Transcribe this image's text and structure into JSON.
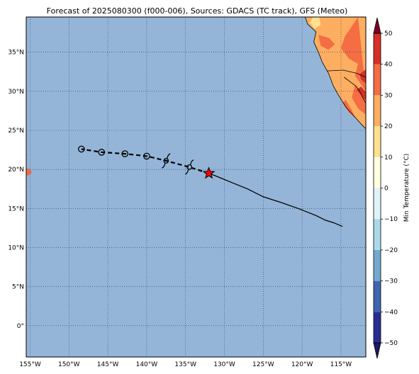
{
  "title": "Forecast of 2025080300 (f000-006), Sources: GDACS (TC track), GFS (Meteo)",
  "map": {
    "lon_range": [
      -155.5,
      -111.8
    ],
    "lat_range": [
      -4.0,
      39.5
    ],
    "ocean_color": "#94b5d8",
    "gridlines": "dotted",
    "lon_ticks": [
      {
        "value": -155,
        "label": "155°W"
      },
      {
        "value": -150,
        "label": "150°W"
      },
      {
        "value": -145,
        "label": "145°W"
      },
      {
        "value": -140,
        "label": "140°W"
      },
      {
        "value": -135,
        "label": "135°W"
      },
      {
        "value": -130,
        "label": "130°W"
      },
      {
        "value": -125,
        "label": "125°W"
      },
      {
        "value": -120,
        "label": "120°W"
      },
      {
        "value": -115,
        "label": "115°W"
      }
    ],
    "lat_ticks": [
      {
        "value": 35,
        "label": "35°N"
      },
      {
        "value": 30,
        "label": "30°N"
      },
      {
        "value": 25,
        "label": "25°N"
      },
      {
        "value": 20,
        "label": "20°N"
      },
      {
        "value": 15,
        "label": "15°N"
      },
      {
        "value": 10,
        "label": "10°N"
      },
      {
        "value": 5,
        "label": "5°N"
      },
      {
        "value": 0,
        "label": "0°"
      }
    ]
  },
  "chart_data": {
    "type": "map",
    "past_track": [
      {
        "lon": -114.8,
        "lat": 12.7
      },
      {
        "lon": -116.0,
        "lat": 13.2
      },
      {
        "lon": -117.0,
        "lat": 13.5
      },
      {
        "lon": -118.2,
        "lat": 14.1
      },
      {
        "lon": -120.5,
        "lat": 15.0
      },
      {
        "lon": -122.8,
        "lat": 15.8
      },
      {
        "lon": -125.0,
        "lat": 16.5
      },
      {
        "lon": -127.0,
        "lat": 17.5
      },
      {
        "lon": -129.5,
        "lat": 18.5
      },
      {
        "lon": -131.2,
        "lat": 19.2
      },
      {
        "lon": -132.0,
        "lat": 19.5
      }
    ],
    "current_position": {
      "lon": -132.0,
      "lat": 19.5
    },
    "forecast_track": [
      {
        "lon": -132.0,
        "lat": 19.5
      },
      {
        "lon": -134.5,
        "lat": 20.3
      },
      {
        "lon": -137.5,
        "lat": 21.1
      },
      {
        "lon": -140.0,
        "lat": 21.7
      },
      {
        "lon": -142.8,
        "lat": 22.0
      },
      {
        "lon": -145.8,
        "lat": 22.2
      },
      {
        "lon": -148.4,
        "lat": 22.6
      }
    ],
    "forecast_markers": [
      {
        "lon": -134.5,
        "lat": 20.3,
        "symbol": "storm"
      },
      {
        "lon": -137.5,
        "lat": 21.1,
        "symbol": "storm"
      },
      {
        "lon": -140.0,
        "lat": 21.7,
        "symbol": "circle"
      },
      {
        "lon": -142.8,
        "lat": 22.0,
        "symbol": "circle"
      },
      {
        "lon": -145.8,
        "lat": 22.2,
        "symbol": "circle"
      },
      {
        "lon": -148.4,
        "lat": 22.6,
        "symbol": "circle"
      }
    ],
    "land_patches": [
      {
        "name": "north-america",
        "bands": [
          {
            "color": "#fdae61",
            "poly": [
              [
                -111.8,
                39.5
              ],
              [
                -119.6,
                39.5
              ],
              [
                -119.3,
                38.6
              ],
              [
                -118.2,
                37.6
              ],
              [
                -118.5,
                36.3
              ],
              [
                -117.9,
                35.0
              ],
              [
                -117.4,
                33.7
              ],
              [
                -116.6,
                32.3
              ],
              [
                -116.0,
                30.7
              ],
              [
                -115.2,
                29.3
              ],
              [
                -114.3,
                27.9
              ],
              [
                -113.3,
                26.8
              ],
              [
                -112.4,
                25.8
              ],
              [
                -111.8,
                25.2
              ]
            ]
          },
          {
            "color": "#f46d43",
            "poly": [
              [
                -112.8,
                39.5
              ],
              [
                -114.5,
                37.0
              ],
              [
                -115.0,
                35.5
              ],
              [
                -114.0,
                34.2
              ],
              [
                -112.8,
                33.5
              ],
              [
                -113.2,
                32.0
              ],
              [
                -112.5,
                31.0
              ],
              [
                -111.8,
                30.0
              ]
            ]
          },
          {
            "color": "#f46d43",
            "poly": [
              [
                -117.9,
                37.2
              ],
              [
                -116.5,
                36.8
              ],
              [
                -115.8,
                36.0
              ],
              [
                -116.6,
                35.3
              ],
              [
                -117.6,
                35.8
              ]
            ]
          },
          {
            "color": "#f46d43",
            "poly": [
              [
                -113.2,
                30.8
              ],
              [
                -112.2,
                29.6
              ],
              [
                -111.8,
                28.5
              ],
              [
                -111.8,
                27.0
              ],
              [
                -112.8,
                27.8
              ],
              [
                -113.6,
                29.2
              ]
            ]
          },
          {
            "color": "#f46d43",
            "poly": [
              [
                -114.8,
                28.5
              ],
              [
                -114.0,
                27.3
              ],
              [
                -113.2,
                26.6
              ],
              [
                -113.6,
                27.6
              ],
              [
                -114.4,
                28.9
              ]
            ]
          },
          {
            "color": "#d73027",
            "poly": [
              [
                -112.6,
                32.2
              ],
              [
                -111.8,
                32.8
              ],
              [
                -111.8,
                31.0
              ],
              [
                -112.4,
                31.5
              ]
            ]
          },
          {
            "color": "#d73027",
            "poly": [
              [
                -113.0,
                30.2
              ],
              [
                -112.3,
                29.4
              ],
              [
                -111.8,
                28.8
              ],
              [
                -111.8,
                29.9
              ],
              [
                -112.4,
                30.6
              ]
            ]
          },
          {
            "color": "#fee090",
            "poly": [
              [
                -118.6,
                39.5
              ],
              [
                -119.0,
                38.8
              ],
              [
                -118.4,
                38.0
              ],
              [
                -117.6,
                38.5
              ],
              [
                -117.8,
                39.5
              ]
            ]
          }
        ],
        "coast": [
          [
            -119.6,
            39.5
          ],
          [
            -119.3,
            38.6
          ],
          [
            -118.2,
            37.6
          ],
          [
            -118.5,
            36.3
          ],
          [
            -117.9,
            35.0
          ],
          [
            -117.4,
            33.7
          ],
          [
            -116.6,
            32.3
          ],
          [
            -116.0,
            30.7
          ],
          [
            -115.2,
            29.3
          ],
          [
            -114.3,
            27.9
          ],
          [
            -113.3,
            26.8
          ],
          [
            -112.4,
            25.8
          ],
          [
            -111.8,
            25.2
          ]
        ],
        "border": [
          [
            -116.8,
            32.6
          ],
          [
            -114.7,
            32.7
          ],
          [
            -113.0,
            32.3
          ],
          [
            -111.8,
            31.8
          ]
        ],
        "gulf_coast": [
          [
            -114.6,
            31.8
          ],
          [
            -113.8,
            31.2
          ],
          [
            -113.0,
            30.6
          ],
          [
            -112.6,
            30.0
          ],
          [
            -112.1,
            29.0
          ],
          [
            -111.8,
            28.5
          ]
        ]
      },
      {
        "name": "hawaii",
        "bands": [
          {
            "color": "#f46d43",
            "poly": [
              [
                -155.5,
                20.2
              ],
              [
                -155.0,
                20.0
              ],
              [
                -154.8,
                19.6
              ],
              [
                -155.2,
                19.2
              ],
              [
                -155.5,
                19.3
              ]
            ]
          }
        ]
      }
    ]
  },
  "colorbar": {
    "label": "Min Temperature (°C)",
    "min": -50,
    "max": 50,
    "extend": "both",
    "levels": [
      -50,
      -40,
      -30,
      -20,
      -10,
      0,
      10,
      20,
      30,
      40,
      50
    ],
    "colors": [
      "#2b2e8f",
      "#3f66ae",
      "#74a9cf",
      "#abd9e9",
      "#e0f3f8",
      "#ffffe1",
      "#fee090",
      "#fdae61",
      "#f46d43",
      "#d73027",
      "#a50026"
    ],
    "under_color": "#1a1a66",
    "over_color": "#800026",
    "ticks": [
      {
        "value": 50,
        "label": "50"
      },
      {
        "value": 40,
        "label": "40"
      },
      {
        "value": 30,
        "label": "30"
      },
      {
        "value": 20,
        "label": "20"
      },
      {
        "value": 10,
        "label": "10"
      },
      {
        "value": 0,
        "label": "0"
      },
      {
        "value": -10,
        "label": "−10"
      },
      {
        "value": -20,
        "label": "−20"
      },
      {
        "value": -30,
        "label": "−30"
      },
      {
        "value": -40,
        "label": "−40"
      },
      {
        "value": -50,
        "label": "−50"
      }
    ]
  }
}
